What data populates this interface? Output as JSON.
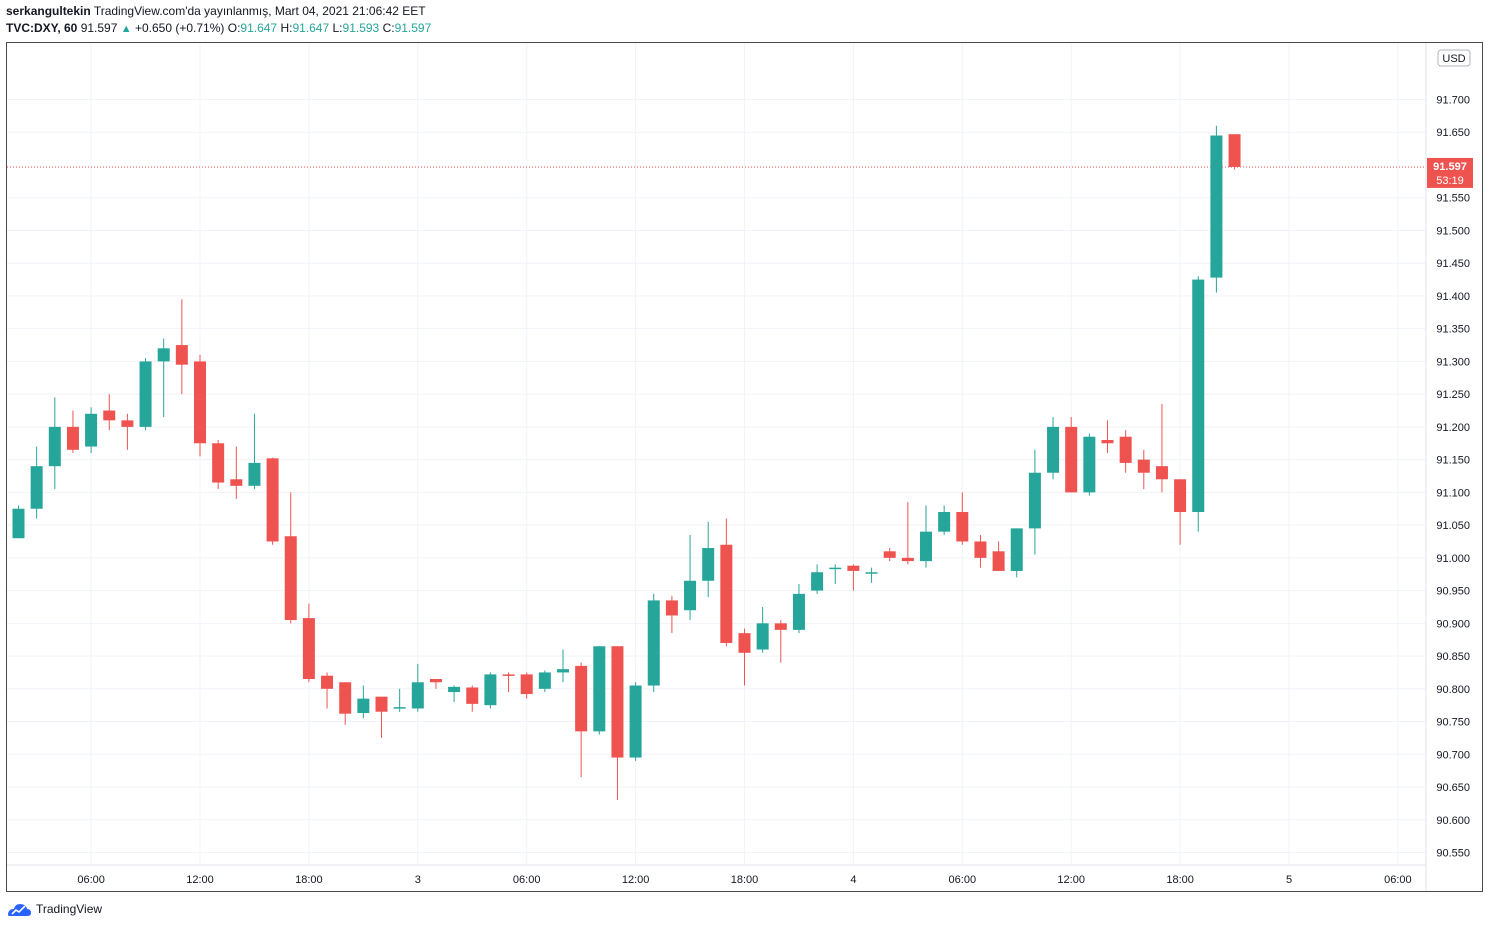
{
  "header": {
    "author": "serkangultekin",
    "published": "TradingView.com'da yayınlanmış, Mart 04, 2021 21:06:42 EET",
    "symbol": "TVC:DXY, 60",
    "price": "91.597",
    "change": "+0.650 (+0.71%)",
    "o_label": "O:",
    "o_value": "91.647",
    "h_label": "H:",
    "h_value": "91.647",
    "l_label": "L:",
    "l_value": "91.593",
    "c_label": "C:",
    "c_value": "91.597"
  },
  "footer": {
    "brand": "TradingView"
  },
  "colors": {
    "up": "#26a69a",
    "down": "#ef5350",
    "grid": "#f0f3fa",
    "price_line": "#ef5350"
  },
  "chart_data": {
    "type": "candlestick",
    "currency": "USD",
    "last_price_label": "91.597",
    "countdown_label": "53:19",
    "last_price": 91.597,
    "y_ticks": [
      "90.550",
      "90.600",
      "90.650",
      "90.700",
      "90.750",
      "90.800",
      "90.850",
      "90.900",
      "90.950",
      "91.000",
      "91.050",
      "91.100",
      "91.150",
      "91.200",
      "91.250",
      "91.300",
      "91.350",
      "91.400",
      "91.450",
      "91.500",
      "91.550",
      "91.650",
      "91.700"
    ],
    "y_range": [
      90.53,
      91.77
    ],
    "x_tick_labels": [
      {
        "bar": 4,
        "label": "06:00"
      },
      {
        "bar": 10,
        "label": "12:00"
      },
      {
        "bar": 16,
        "label": "18:00"
      },
      {
        "bar": 22,
        "label": "3"
      },
      {
        "bar": 28,
        "label": "06:00"
      },
      {
        "bar": 34,
        "label": "12:00"
      },
      {
        "bar": 40,
        "label": "18:00"
      },
      {
        "bar": 46,
        "label": "4"
      },
      {
        "bar": 52,
        "label": "06:00"
      },
      {
        "bar": 58,
        "label": "12:00"
      },
      {
        "bar": 64,
        "label": "18:00"
      },
      {
        "bar": 70,
        "label": "5"
      },
      {
        "bar": 76,
        "label": "06:00"
      }
    ],
    "ohlc": [
      [
        91.03,
        91.08,
        91.03,
        91.075
      ],
      [
        91.075,
        91.17,
        91.06,
        91.14
      ],
      [
        91.14,
        91.245,
        91.105,
        91.2
      ],
      [
        91.2,
        91.225,
        91.16,
        91.165
      ],
      [
        91.17,
        91.23,
        91.16,
        91.22
      ],
      [
        91.225,
        91.25,
        91.195,
        91.21
      ],
      [
        91.21,
        91.22,
        91.165,
        91.2
      ],
      [
        91.2,
        91.305,
        91.195,
        91.3
      ],
      [
        91.3,
        91.335,
        91.215,
        91.32
      ],
      [
        91.325,
        91.395,
        91.25,
        91.295
      ],
      [
        91.3,
        91.31,
        91.155,
        91.175
      ],
      [
        91.175,
        91.18,
        91.105,
        91.115
      ],
      [
        91.12,
        91.17,
        91.09,
        91.11
      ],
      [
        91.11,
        91.22,
        91.105,
        91.145
      ],
      [
        91.152,
        91.153,
        91.02,
        91.025
      ],
      [
        91.033,
        91.1,
        90.9,
        90.905
      ],
      [
        90.908,
        90.93,
        90.81,
        90.815
      ],
      [
        90.82,
        90.825,
        90.77,
        90.8
      ],
      [
        90.81,
        90.81,
        90.745,
        90.762
      ],
      [
        90.763,
        90.805,
        90.755,
        90.785
      ],
      [
        90.788,
        90.788,
        90.725,
        90.765
      ],
      [
        90.77,
        90.8,
        90.765,
        90.772
      ],
      [
        90.77,
        90.838,
        90.765,
        90.81
      ],
      [
        90.815,
        90.815,
        90.8,
        90.81
      ],
      [
        90.795,
        90.805,
        90.78,
        90.803
      ],
      [
        90.802,
        90.805,
        90.765,
        90.777
      ],
      [
        90.775,
        90.825,
        90.77,
        90.822
      ],
      [
        90.822,
        90.825,
        90.795,
        90.82
      ],
      [
        90.822,
        90.825,
        90.785,
        90.792
      ],
      [
        90.8,
        90.828,
        90.795,
        90.825
      ],
      [
        90.825,
        90.86,
        90.81,
        90.83
      ],
      [
        90.835,
        90.84,
        90.665,
        90.735
      ],
      [
        90.735,
        90.865,
        90.73,
        90.865
      ],
      [
        90.865,
        90.865,
        90.63,
        90.695
      ],
      [
        90.695,
        90.81,
        90.69,
        90.805
      ],
      [
        90.805,
        90.945,
        90.795,
        90.935
      ],
      [
        90.935,
        90.942,
        90.885,
        90.912
      ],
      [
        90.92,
        91.035,
        90.905,
        90.965
      ],
      [
        90.965,
        91.055,
        90.94,
        91.015
      ],
      [
        91.02,
        91.06,
        90.865,
        90.87
      ],
      [
        90.885,
        90.892,
        90.805,
        90.855
      ],
      [
        90.86,
        90.925,
        90.855,
        90.9
      ],
      [
        90.9,
        90.905,
        90.84,
        90.89
      ],
      [
        90.89,
        90.96,
        90.885,
        90.945
      ],
      [
        90.95,
        90.99,
        90.945,
        90.978
      ],
      [
        90.983,
        90.99,
        90.96,
        90.985
      ],
      [
        90.988,
        90.99,
        90.95,
        90.98
      ],
      [
        90.978,
        90.985,
        90.962,
        90.978
      ],
      [
        91.01,
        91.015,
        90.995,
        91.0
      ],
      [
        91.0,
        91.085,
        90.99,
        90.995
      ],
      [
        90.995,
        91.08,
        90.985,
        91.04
      ],
      [
        91.04,
        91.08,
        91.035,
        91.07
      ],
      [
        91.07,
        91.1,
        91.02,
        91.025
      ],
      [
        91.025,
        91.035,
        90.985,
        91.0
      ],
      [
        91.01,
        91.025,
        90.98,
        90.98
      ],
      [
        90.98,
        91.045,
        90.97,
        91.045
      ],
      [
        91.045,
        91.165,
        91.005,
        91.13
      ],
      [
        91.13,
        91.215,
        91.12,
        91.2
      ],
      [
        91.2,
        91.215,
        91.1,
        91.1
      ],
      [
        91.1,
        91.19,
        91.095,
        91.185
      ],
      [
        91.18,
        91.21,
        91.16,
        91.175
      ],
      [
        91.185,
        91.195,
        91.13,
        91.145
      ],
      [
        91.15,
        91.165,
        91.105,
        91.13
      ],
      [
        91.14,
        91.235,
        91.1,
        91.12
      ],
      [
        91.12,
        91.12,
        91.02,
        91.07
      ],
      [
        91.07,
        91.43,
        91.04,
        91.425
      ],
      [
        91.428,
        91.66,
        91.405,
        91.645
      ],
      [
        91.647,
        91.647,
        91.593,
        91.597
      ]
    ]
  }
}
